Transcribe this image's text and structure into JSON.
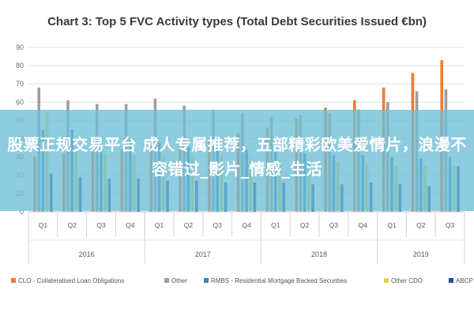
{
  "chart_data": {
    "type": "bar",
    "title": "Chart 3: Top 5 FVC Activity types (Total Debt Securities Issued €bn)",
    "ylim": [
      0,
      90
    ],
    "yticks": [
      0,
      10,
      20,
      30,
      40,
      50,
      60,
      70,
      80,
      90
    ],
    "grid": true,
    "legend_position": "bottom",
    "categories": [
      "Q1",
      "Q2",
      "Q3",
      "Q4",
      "Q1",
      "Q2",
      "Q3",
      "Q4",
      "Q1",
      "Q2",
      "Q3",
      "Q4",
      "Q1",
      "Q2",
      "Q3"
    ],
    "years": [
      {
        "label": "2016",
        "quarters": 4
      },
      {
        "label": "2017",
        "quarters": 4
      },
      {
        "label": "2018",
        "quarters": 4
      },
      {
        "label": "2019",
        "quarters": 3
      }
    ],
    "series": [
      {
        "name": "CLO - Collateralised Loan Obligations",
        "color": "#f07b2e",
        "values": [
          30,
          32,
          33,
          34,
          36,
          38,
          40,
          43,
          46,
          51,
          57,
          61,
          68,
          76,
          83
        ]
      },
      {
        "name": "Other",
        "color": "#9e9e9e",
        "values": [
          68,
          61,
          59,
          59,
          62,
          58,
          56,
          54,
          52,
          53,
          54,
          56,
          60,
          66,
          67
        ]
      },
      {
        "name": "RMBS - Residential Mortgage Backed Securities",
        "color": "#2e8bc9",
        "values": [
          45,
          45,
          41,
          40,
          38,
          36,
          35,
          34,
          33,
          32,
          31,
          31,
          30,
          29,
          30
        ]
      },
      {
        "name": "Other CDO",
        "color": "#e0d44a",
        "values": [
          55,
          33,
          32,
          31,
          30,
          30,
          30,
          29,
          28,
          27,
          27,
          26,
          25,
          25,
          25
        ]
      },
      {
        "name": "ABCP",
        "color": "#1a4fa3",
        "values": [
          21,
          19,
          18,
          18,
          17,
          17,
          16,
          16,
          16,
          15,
          15,
          16,
          15,
          14,
          25
        ]
      }
    ]
  },
  "overlay": {
    "text": "股票正规交易平台 成人专属推荐，五部精彩欧美爱情片，浪漫不容错过_影片_情感_生活",
    "color": "#6ebed6"
  }
}
